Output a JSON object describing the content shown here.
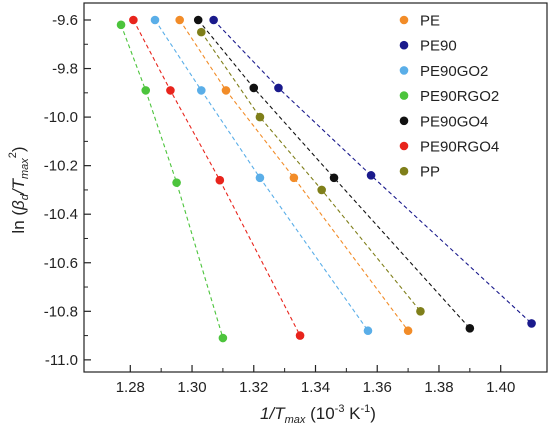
{
  "chart_data": {
    "type": "scatter",
    "title": "",
    "xlabel_main": "1/T",
    "xlabel_sub": "max",
    "xlabel_units_pre": " (10",
    "xlabel_units_exp": "-3",
    "xlabel_units_mid": " K",
    "xlabel_units_exp2": "-1",
    "xlabel_units_post": ")",
    "ylabel_pre": "ln (",
    "ylabel_beta": "β",
    "ylabel_beta_sub": "d",
    "ylabel_slash": "/T",
    "ylabel_t_sub": "max",
    "ylabel_exp": "2",
    "ylabel_post": ")",
    "xlim": [
      1.265,
      1.415
    ],
    "ylim": [
      -11.05,
      -9.53
    ],
    "xticks": [
      1.28,
      1.3,
      1.32,
      1.34,
      1.36,
      1.38,
      1.4
    ],
    "xtick_labels": [
      "1.28",
      "1.30",
      "1.32",
      "1.34",
      "1.36",
      "1.38",
      "1.40"
    ],
    "yticks": [
      -9.6,
      -9.8,
      -10.0,
      -10.2,
      -10.4,
      -10.6,
      -10.8,
      -11.0
    ],
    "ytick_labels": [
      "-9.6",
      "-9.8",
      "-10.0",
      "-10.2",
      "-10.4",
      "-10.6",
      "-10.8",
      "-11.0"
    ],
    "grid": false,
    "legend_position": "top-right",
    "series": [
      {
        "name": "PE",
        "color": "#f28c28",
        "x": [
          1.296,
          1.311,
          1.333,
          1.37
        ],
        "y": [
          -9.6,
          -9.89,
          -10.25,
          -10.88
        ]
      },
      {
        "name": "PE90",
        "color": "#1a1a8c",
        "x": [
          1.307,
          1.328,
          1.358,
          1.41
        ],
        "y": [
          -9.6,
          -9.88,
          -10.24,
          -10.85
        ]
      },
      {
        "name": "PE90GO2",
        "color": "#5aaee8",
        "x": [
          1.288,
          1.303,
          1.322,
          1.357
        ],
        "y": [
          -9.6,
          -9.89,
          -10.25,
          -10.88
        ]
      },
      {
        "name": "PE90RGO2",
        "color": "#4cc43c",
        "x": [
          1.277,
          1.285,
          1.295,
          1.31
        ],
        "y": [
          -9.62,
          -9.89,
          -10.27,
          -10.91
        ]
      },
      {
        "name": "PE90GO4",
        "color": "#111111",
        "x": [
          1.302,
          1.32,
          1.346,
          1.39
        ],
        "y": [
          -9.6,
          -9.88,
          -10.25,
          -10.87
        ]
      },
      {
        "name": "PE90RGO4",
        "color": "#e8241c",
        "x": [
          1.281,
          1.293,
          1.309,
          1.335
        ],
        "y": [
          -9.6,
          -9.89,
          -10.26,
          -10.9
        ]
      },
      {
        "name": "PP",
        "color": "#7f7f1a",
        "x": [
          1.303,
          1.322,
          1.342,
          1.374
        ],
        "y": [
          -9.65,
          -10.0,
          -10.3,
          -10.8
        ]
      }
    ]
  }
}
